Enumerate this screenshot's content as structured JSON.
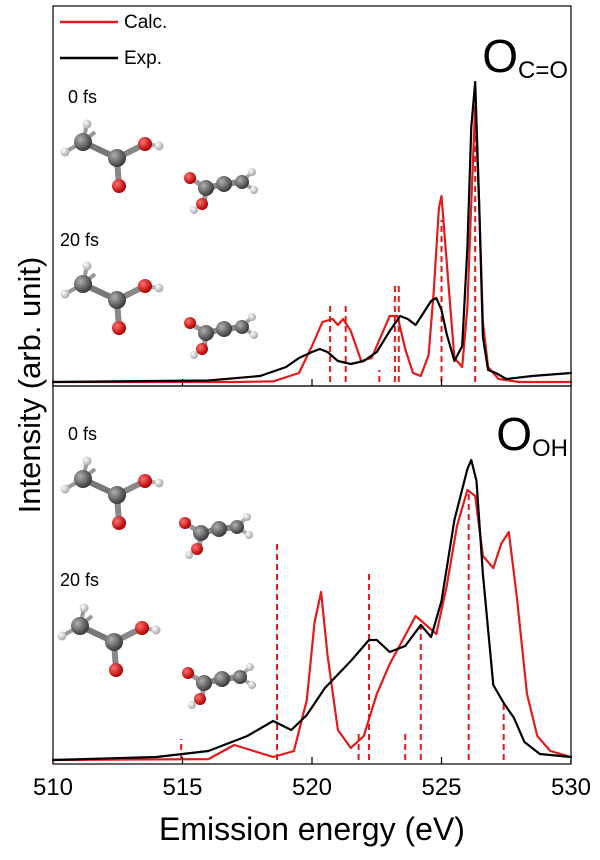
{
  "chart_data": {
    "type": "line",
    "xlabel": "Emission energy (eV)",
    "ylabel": "Intensity (arb. unit)",
    "xlim": [
      510,
      530
    ],
    "xticks": [
      510,
      515,
      520,
      525,
      530
    ],
    "legend": {
      "placement": "top-left",
      "entries": [
        {
          "name": "Calc.",
          "color": "#e31a1a"
        },
        {
          "name": "Exp.",
          "color": "#000000"
        }
      ]
    },
    "colors": {
      "calc": "#e31a1a",
      "exp": "#000000"
    },
    "panels": [
      {
        "label_main": "O",
        "label_sub": "C=O",
        "time_labels": [
          "0 fs",
          "20 fs"
        ],
        "series": [
          {
            "name": "Calc.",
            "x": [
              510,
              517,
              518.5,
              519.5,
              520.0,
              520.4,
              520.8,
              521.0,
              521.2,
              521.5,
              521.9,
              522.3,
              522.7,
              523.0,
              523.3,
              523.6,
              523.9,
              524.2,
              524.5,
              524.7,
              524.9,
              525.0,
              525.2,
              525.5,
              525.8,
              526.0,
              526.15,
              526.3,
              526.45,
              526.6,
              526.8,
              527.2,
              528,
              530
            ],
            "y": [
              0,
              0,
              0.002,
              0.03,
              0.12,
              0.2,
              0.21,
              0.19,
              0.21,
              0.17,
              0.07,
              0.08,
              0.16,
              0.22,
              0.22,
              0.11,
              0.03,
              0.02,
              0.09,
              0.3,
              0.58,
              0.62,
              0.4,
              0.08,
              0.05,
              0.25,
              0.6,
              0.92,
              0.6,
              0.2,
              0.05,
              0.01,
              0,
              0
            ]
          },
          {
            "name": "Exp.",
            "x": [
              510,
              516,
              518,
              519,
              519.5,
              520.0,
              520.3,
              520.6,
              521.0,
              521.5,
              522.0,
              522.5,
              523.0,
              523.4,
              523.7,
              524.0,
              524.3,
              524.6,
              524.8,
              525.0,
              525.2,
              525.5,
              525.8,
              526.0,
              526.15,
              526.3,
              526.45,
              526.6,
              526.8,
              527.1,
              527.5,
              528.5,
              530
            ],
            "y": [
              0,
              0.005,
              0.02,
              0.05,
              0.08,
              0.1,
              0.11,
              0.1,
              0.07,
              0.06,
              0.07,
              0.1,
              0.17,
              0.22,
              0.21,
              0.19,
              0.23,
              0.27,
              0.28,
              0.24,
              0.16,
              0.07,
              0.12,
              0.45,
              0.85,
              1.0,
              0.6,
              0.15,
              0.04,
              0.03,
              0.01,
              0.02,
              0.03
            ]
          }
        ],
        "sticks": [
          {
            "x": 520.7,
            "h": 0.26
          },
          {
            "x": 521.3,
            "h": 0.26
          },
          {
            "x": 522.6,
            "h": 0.04
          },
          {
            "x": 523.2,
            "h": 0.32
          },
          {
            "x": 523.35,
            "h": 0.32
          },
          {
            "x": 525.0,
            "h": 0.54
          },
          {
            "x": 526.3,
            "h": 0.92
          }
        ]
      },
      {
        "label_main": "O",
        "label_sub": "OH",
        "time_labels": [
          "0 fs",
          "20 fs"
        ],
        "series": [
          {
            "name": "Calc.",
            "x": [
              510,
              516,
              517,
              518.5,
              519.3,
              519.8,
              520.1,
              520.35,
              520.6,
              521.0,
              521.5,
              522.0,
              522.5,
              523.0,
              523.5,
              524.0,
              524.4,
              524.8,
              525.2,
              525.6,
              526.0,
              526.3,
              526.6,
              527.0,
              527.3,
              527.6,
              527.9,
              528.3,
              528.7,
              529.2,
              530
            ],
            "y": [
              0,
              0.003,
              0.05,
              0.01,
              0.03,
              0.2,
              0.46,
              0.56,
              0.35,
              0.1,
              0.04,
              0.08,
              0.22,
              0.32,
              0.4,
              0.48,
              0.45,
              0.42,
              0.58,
              0.78,
              0.9,
              0.88,
              0.68,
              0.64,
              0.72,
              0.76,
              0.55,
              0.22,
              0.08,
              0.03,
              0.01
            ]
          },
          {
            "name": "Exp.",
            "x": [
              510,
              514,
              516,
              517.5,
              518.5,
              519.2,
              519.8,
              520.5,
              521.5,
              522.2,
              522.5,
              523.0,
              523.6,
              524.2,
              524.6,
              525.0,
              525.5,
              526.0,
              526.15,
              526.35,
              526.6,
              527.0,
              527.4,
              527.8,
              528.2,
              528.8,
              530
            ],
            "y": [
              0,
              0.01,
              0.03,
              0.08,
              0.13,
              0.1,
              0.15,
              0.24,
              0.33,
              0.4,
              0.4,
              0.36,
              0.38,
              0.45,
              0.41,
              0.53,
              0.8,
              0.97,
              1.0,
              0.93,
              0.62,
              0.25,
              0.19,
              0.14,
              0.06,
              0.02,
              0.01
            ]
          }
        ],
        "sticks": [
          {
            "x": 514.95,
            "h": 0.07
          },
          {
            "x": 518.65,
            "h": 0.73
          },
          {
            "x": 521.8,
            "h": 0.1
          },
          {
            "x": 522.2,
            "h": 0.63
          },
          {
            "x": 523.6,
            "h": 0.09
          },
          {
            "x": 524.2,
            "h": 0.46
          },
          {
            "x": 526.05,
            "h": 0.89
          },
          {
            "x": 527.4,
            "h": 0.2
          }
        ]
      }
    ]
  }
}
